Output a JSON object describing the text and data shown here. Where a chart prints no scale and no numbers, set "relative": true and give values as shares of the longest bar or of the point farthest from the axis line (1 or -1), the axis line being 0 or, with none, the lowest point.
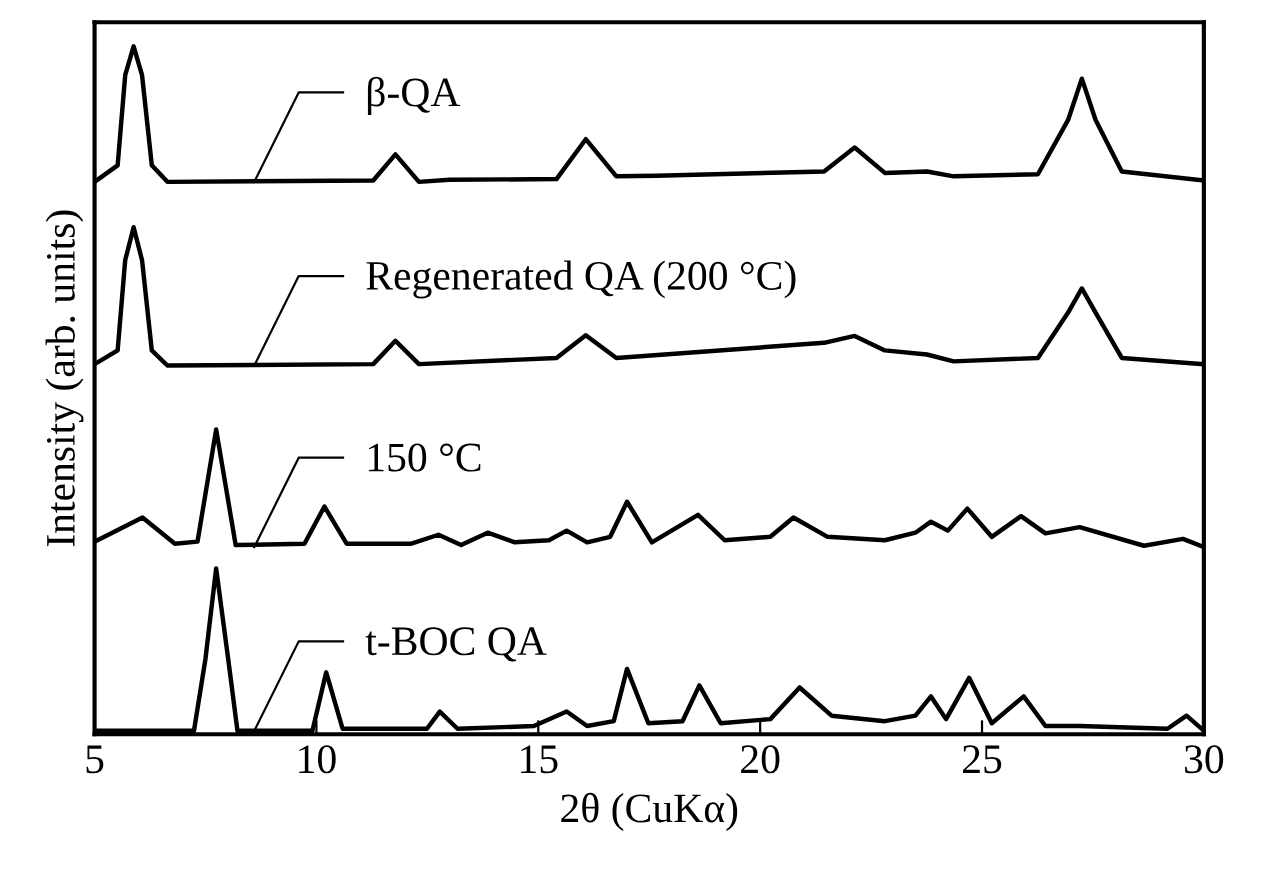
{
  "chart_data": {
    "type": "line",
    "relative": true,
    "xlabel": "2θ (CuKα)",
    "ylabel": "Intensity (arb. units)",
    "xlim": [
      5,
      30
    ],
    "xticks": [
      5,
      10,
      15,
      20,
      25,
      30
    ],
    "grid": false,
    "legend": false,
    "marker": "none",
    "line_style": "solid",
    "series": [
      {
        "name": "β-QA",
        "color": "#000000",
        "x": [
          5.0,
          5.52,
          5.69,
          5.88,
          6.07,
          6.29,
          6.64,
          11.28,
          11.78,
          12.31,
          13.0,
          15.41,
          16.07,
          16.76,
          17.65,
          21.44,
          22.13,
          22.81,
          23.76,
          24.36,
          26.26,
          26.94,
          27.25,
          27.56,
          28.15,
          30.0
        ],
        "values": [
          0.803,
          0.827,
          0.958,
          1.0,
          0.958,
          0.827,
          0.803,
          0.805,
          0.843,
          0.803,
          0.806,
          0.807,
          0.865,
          0.811,
          0.812,
          0.818,
          0.853,
          0.816,
          0.818,
          0.811,
          0.814,
          0.893,
          0.953,
          0.893,
          0.818,
          0.805
        ]
      },
      {
        "name": "Regenerated QA (200 °C)",
        "color": "#000000",
        "x": [
          5.0,
          5.52,
          5.69,
          5.88,
          6.07,
          6.29,
          6.64,
          11.28,
          11.78,
          12.31,
          15.41,
          16.07,
          16.76,
          21.44,
          22.13,
          22.81,
          23.76,
          24.36,
          26.26,
          26.94,
          27.25,
          27.56,
          28.15,
          30.0
        ],
        "values": [
          0.538,
          0.558,
          0.689,
          0.737,
          0.689,
          0.558,
          0.536,
          0.538,
          0.572,
          0.538,
          0.547,
          0.58,
          0.547,
          0.569,
          0.579,
          0.558,
          0.552,
          0.542,
          0.547,
          0.613,
          0.648,
          0.613,
          0.547,
          0.538
        ]
      },
      {
        "name": "150 °C",
        "color": "#000000",
        "x": [
          5.0,
          6.08,
          6.81,
          7.32,
          7.74,
          8.18,
          9.73,
          10.18,
          10.68,
          12.14,
          12.75,
          13.26,
          13.86,
          14.47,
          15.24,
          15.64,
          16.1,
          16.62,
          17.0,
          17.56,
          18.6,
          19.2,
          20.23,
          20.75,
          21.52,
          22.81,
          23.5,
          23.85,
          24.23,
          24.67,
          25.22,
          25.88,
          26.43,
          27.2,
          28.65,
          29.53,
          30.0
        ],
        "values": [
          0.28,
          0.315,
          0.277,
          0.28,
          0.443,
          0.275,
          0.277,
          0.331,
          0.277,
          0.277,
          0.29,
          0.275,
          0.293,
          0.279,
          0.282,
          0.296,
          0.279,
          0.287,
          0.338,
          0.279,
          0.319,
          0.282,
          0.287,
          0.315,
          0.287,
          0.282,
          0.293,
          0.309,
          0.296,
          0.328,
          0.287,
          0.317,
          0.292,
          0.301,
          0.274,
          0.284,
          0.272
        ]
      },
      {
        "name": "t-BOC QA",
        "color": "#000000",
        "x": [
          5.0,
          7.24,
          7.5,
          7.74,
          8.01,
          8.22,
          9.91,
          10.22,
          10.59,
          12.49,
          12.78,
          13.18,
          14.9,
          15.64,
          16.1,
          16.7,
          17.0,
          17.48,
          18.25,
          18.63,
          19.11,
          20.23,
          20.89,
          21.61,
          22.81,
          23.5,
          23.85,
          24.19,
          24.71,
          25.22,
          25.94,
          26.43,
          27.2,
          29.18,
          29.61,
          30.0
        ],
        "values": [
          0.005,
          0.005,
          0.11,
          0.241,
          0.11,
          0.005,
          0.005,
          0.09,
          0.008,
          0.008,
          0.033,
          0.008,
          0.012,
          0.033,
          0.012,
          0.019,
          0.095,
          0.016,
          0.019,
          0.071,
          0.016,
          0.022,
          0.068,
          0.027,
          0.019,
          0.027,
          0.055,
          0.022,
          0.082,
          0.016,
          0.055,
          0.012,
          0.012,
          0.008,
          0.027,
          0.005
        ]
      }
    ]
  }
}
